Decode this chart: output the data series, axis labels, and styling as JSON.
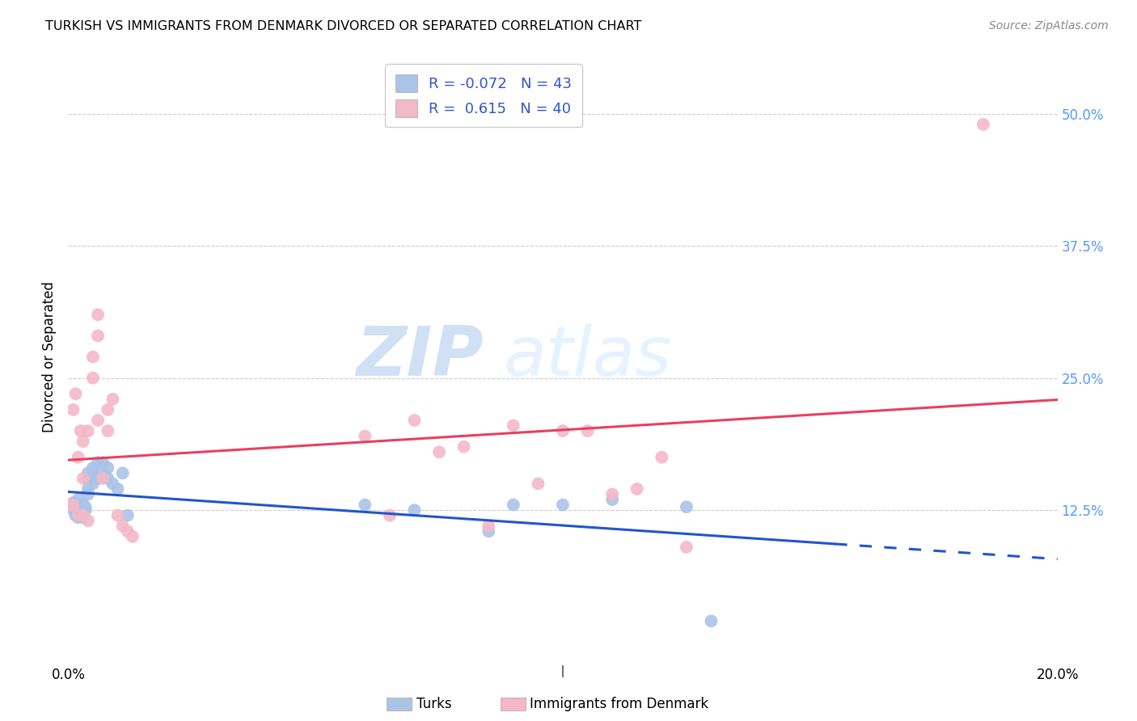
{
  "title": "TURKISH VS IMMIGRANTS FROM DENMARK DIVORCED OR SEPARATED CORRELATION CHART",
  "source": "Source: ZipAtlas.com",
  "ylabel": "Divorced or Separated",
  "xlabel_turks": "Turks",
  "xlabel_denmark": "Immigrants from Denmark",
  "watermark": "ZIPatlas",
  "legend_r_turks": "-0.072",
  "legend_n_turks": "43",
  "legend_r_denmark": "0.615",
  "legend_n_denmark": "40",
  "xlim": [
    0.0,
    0.2
  ],
  "ylim": [
    -0.02,
    0.56
  ],
  "yticks": [
    0.125,
    0.25,
    0.375,
    0.5
  ],
  "ytick_labels": [
    "12.5%",
    "25.0%",
    "37.5%",
    "50.0%"
  ],
  "color_turks": "#aac4e8",
  "color_denmark": "#f4b8c8",
  "line_color_turks": "#2255cc",
  "line_color_denmark": "#e84060",
  "turks_x": [
    0.0005,
    0.001,
    0.001,
    0.0015,
    0.0015,
    0.002,
    0.002,
    0.002,
    0.002,
    0.0025,
    0.0025,
    0.003,
    0.003,
    0.003,
    0.003,
    0.0035,
    0.0035,
    0.004,
    0.004,
    0.004,
    0.004,
    0.005,
    0.005,
    0.005,
    0.006,
    0.006,
    0.006,
    0.007,
    0.007,
    0.008,
    0.008,
    0.009,
    0.01,
    0.011,
    0.012,
    0.06,
    0.07,
    0.085,
    0.09,
    0.1,
    0.11,
    0.125,
    0.13
  ],
  "turks_y": [
    0.13,
    0.125,
    0.132,
    0.12,
    0.128,
    0.118,
    0.122,
    0.13,
    0.135,
    0.125,
    0.128,
    0.122,
    0.118,
    0.125,
    0.13,
    0.125,
    0.128,
    0.14,
    0.155,
    0.16,
    0.145,
    0.165,
    0.15,
    0.16,
    0.155,
    0.17,
    0.155,
    0.16,
    0.17,
    0.165,
    0.155,
    0.15,
    0.145,
    0.16,
    0.12,
    0.13,
    0.125,
    0.105,
    0.13,
    0.13,
    0.135,
    0.128,
    0.02
  ],
  "denmark_x": [
    0.0005,
    0.001,
    0.001,
    0.0015,
    0.002,
    0.002,
    0.0025,
    0.003,
    0.003,
    0.003,
    0.004,
    0.004,
    0.005,
    0.005,
    0.006,
    0.006,
    0.006,
    0.007,
    0.008,
    0.008,
    0.009,
    0.01,
    0.011,
    0.012,
    0.013,
    0.06,
    0.065,
    0.07,
    0.075,
    0.08,
    0.085,
    0.09,
    0.095,
    0.1,
    0.105,
    0.11,
    0.115,
    0.12,
    0.125,
    0.185
  ],
  "denmark_y": [
    0.13,
    0.22,
    0.13,
    0.235,
    0.175,
    0.12,
    0.2,
    0.19,
    0.155,
    0.12,
    0.2,
    0.115,
    0.27,
    0.25,
    0.31,
    0.29,
    0.21,
    0.155,
    0.22,
    0.2,
    0.23,
    0.12,
    0.11,
    0.105,
    0.1,
    0.195,
    0.12,
    0.21,
    0.18,
    0.185,
    0.11,
    0.205,
    0.15,
    0.2,
    0.2,
    0.14,
    0.145,
    0.175,
    0.09,
    0.49
  ],
  "turks_line_x": [
    0.0,
    0.155,
    0.2
  ],
  "turks_line_solid_end": 0.155,
  "denmark_line_x": [
    0.0,
    0.2
  ]
}
